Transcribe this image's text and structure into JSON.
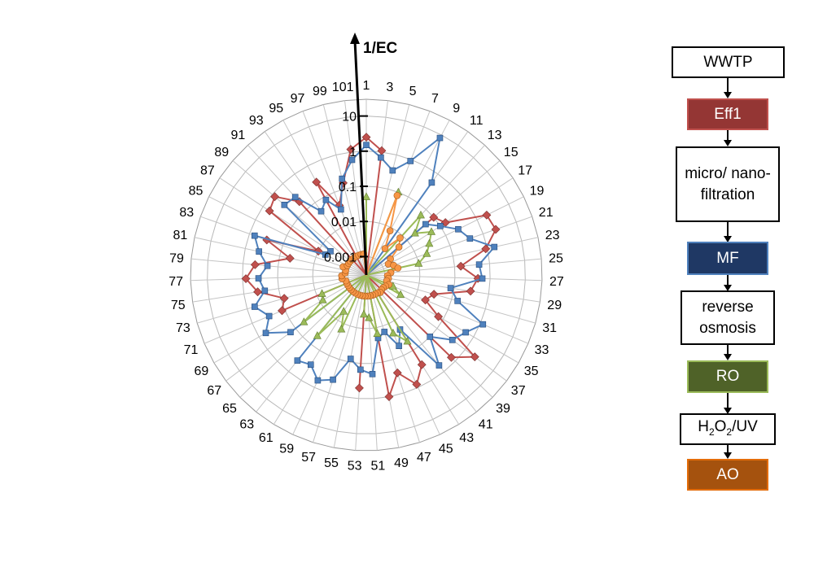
{
  "chart_data": {
    "type": "radar",
    "axis_title": "1/EC",
    "scale": "log",
    "radial_ticks": [
      "0.001",
      "0.01",
      "0.1",
      "1",
      "10"
    ],
    "radial_range": [
      0.0003,
      30
    ],
    "num_spokes": 51,
    "spoke_labels": [
      "1",
      "3",
      "5",
      "7",
      "9",
      "11",
      "13",
      "15",
      "17",
      "19",
      "21",
      "23",
      "25",
      "27",
      "29",
      "31",
      "33",
      "35",
      "37",
      "39",
      "41",
      "43",
      "45",
      "47",
      "49",
      "51",
      "53",
      "55",
      "57",
      "59",
      "61",
      "63",
      "65",
      "67",
      "69",
      "71",
      "73",
      "75",
      "77",
      "79",
      "81",
      "83",
      "85",
      "87",
      "89",
      "91",
      "93",
      "95",
      "97",
      "99",
      "101"
    ],
    "series": [
      {
        "name": "Eff1",
        "color": "#C0504D",
        "marker": "diamond",
        "values": [
          2.5,
          1.1,
          0,
          0,
          0,
          0,
          0,
          0.1,
          0.15,
          2.0,
          2.4,
          0.9,
          0.15,
          0.45,
          0.3,
          0.03,
          0.02,
          0.07,
          2.2,
          0.7,
          0,
          0.3,
          0.8,
          0.25,
          1.0,
          0,
          0.5,
          0,
          0,
          0,
          0,
          0,
          0,
          0,
          0,
          0.12,
          0.08,
          0.4,
          0.8,
          0.45,
          0.05,
          0.3,
          0.01,
          0.6,
          0.8,
          0.2,
          0,
          0.3,
          0.04,
          0.15,
          1.2
        ]
      },
      {
        "name": "MF",
        "color": "#4F81BD",
        "marker": "square",
        "values": [
          1.5,
          0.7,
          0.35,
          0.9,
          8.0,
          0.5,
          0,
          0.05,
          0.1,
          0.25,
          0.4,
          1.6,
          0.5,
          0.6,
          0.08,
          0.15,
          1.2,
          0.55,
          0.35,
          0.1,
          0.6,
          0.02,
          0.05,
          0.015,
          0.02,
          0.2,
          0.15,
          0.08,
          0.4,
          0.6,
          0.3,
          0.4,
          0,
          0.15,
          0.6,
          0.3,
          0.6,
          0.25,
          0.35,
          0.2,
          0.4,
          0.7,
          0.006,
          0.005,
          0.35,
          0.3,
          0.05,
          0.08,
          0.03,
          0.2,
          0.6
        ]
      },
      {
        "name": "RO",
        "color": "#9BBB59",
        "marker": "triangle",
        "values": [
          0.05,
          0,
          0,
          0.1,
          0,
          0,
          0.06,
          0.02,
          0.05,
          0.03,
          0.02,
          0.01,
          0,
          0,
          0,
          0,
          0.002,
          0.004,
          0,
          0,
          0,
          0.05,
          0.02,
          0,
          0.015,
          0.005,
          0.004,
          0,
          0,
          0.015,
          0.005,
          0.05,
          0,
          0.05,
          0.008,
          0.007,
          0,
          0,
          0,
          0,
          0,
          0,
          0,
          0,
          0,
          0,
          0,
          0,
          0,
          0,
          0
        ]
      },
      {
        "name": "AO",
        "color": "#F79646",
        "marker": "circle",
        "values": [
          0,
          0,
          0,
          0.08,
          0.008,
          0.0025,
          0.008,
          0.005,
          0.002,
          0.0015,
          0.002,
          0.0025,
          0.0015,
          0.0012,
          0.0013,
          0.0012,
          0.0015,
          0.0013,
          0.0012,
          0.0012,
          0.0013,
          0.0012,
          0.0012,
          0.0012,
          0.0012,
          0.0012,
          0.0012,
          0.0012,
          0.0012,
          0.0012,
          0.0012,
          0.0012,
          0.0012,
          0.0012,
          0.0012,
          0.0012,
          0.0012,
          0.0015,
          0.0015,
          0.0012,
          0.0012,
          0.0015,
          0.0012,
          0.0012,
          0.0012,
          0.0012,
          0.0012,
          0.0012,
          0.0012,
          0.0012,
          0.0012
        ]
      }
    ]
  },
  "process": {
    "wwtp": "WWTP",
    "eff1": "Eff1",
    "filtration": "micro/ nano- filtration",
    "mf": "MF",
    "reverse": "reverse osmosis",
    "ro": "RO",
    "h2o2_pre": "H",
    "h2o2_sub1": "2",
    "h2o2_mid": "O",
    "h2o2_sub2": "2",
    "h2o2_post": "/UV",
    "ao": "AO"
  },
  "colors": {
    "eff1_fill": "#943634",
    "eff1_border": "#C0504D",
    "mf_fill": "#1F3864",
    "mf_border": "#4F81BD",
    "ro_fill": "#4F6228",
    "ro_border": "#9BBB59",
    "ao_fill": "#A5520E",
    "ao_border": "#E36C09"
  }
}
